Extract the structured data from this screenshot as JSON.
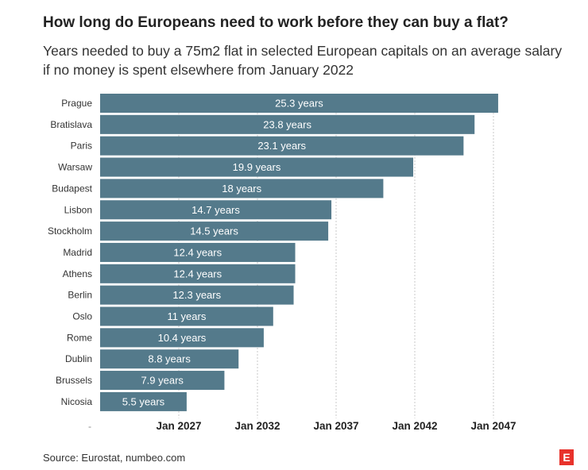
{
  "title": "How long do Europeans need to work before they can buy a flat?",
  "subtitle": "Years needed to buy a 75m2 flat in selected European capitals on an average salary if no money is spent elsewhere from January 2022",
  "source": "Source: Eurostat, numbeo.com",
  "logo": "E",
  "colors": {
    "bar": "#547a8b",
    "grid": "#c9c9c9",
    "label": "#ffffff"
  },
  "chart_data": {
    "type": "bar",
    "orientation": "horizontal",
    "title": "How long do Europeans need to work before they can buy a flat?",
    "start_year": 2022,
    "unit_suffix": " years",
    "categories": [
      "Prague",
      "Bratislava",
      "Paris",
      "Warsaw",
      "Budapest",
      "Lisbon",
      "Stockholm",
      "Madrid",
      "Athens",
      "Berlin",
      "Oslo",
      "Rome",
      "Dublin",
      "Brussels",
      "Nicosia"
    ],
    "values": [
      25.3,
      23.8,
      23.1,
      19.9,
      18,
      14.7,
      14.5,
      12.4,
      12.4,
      12.3,
      11,
      10.4,
      8.8,
      7.9,
      5.5
    ],
    "data_labels": [
      "25.3 years",
      "23.8 years",
      "23.1 years",
      "19.9 years",
      "18 years",
      "14.7 years",
      "14.5 years",
      "12.4 years",
      "12.4 years",
      "12.3 years",
      "11 years",
      "10.4 years",
      "8.8 years",
      "7.9 years",
      "5.5 years"
    ],
    "xaxis": {
      "range_years": [
        0,
        25.3
      ],
      "tick_values": [
        5,
        10,
        15,
        20,
        25
      ],
      "tick_labels": [
        "Jan 2027",
        "Jan 2032",
        "Jan 2037",
        "Jan 2042",
        "Jan 2047"
      ],
      "placeholder_label": "-"
    },
    "grid": true
  }
}
